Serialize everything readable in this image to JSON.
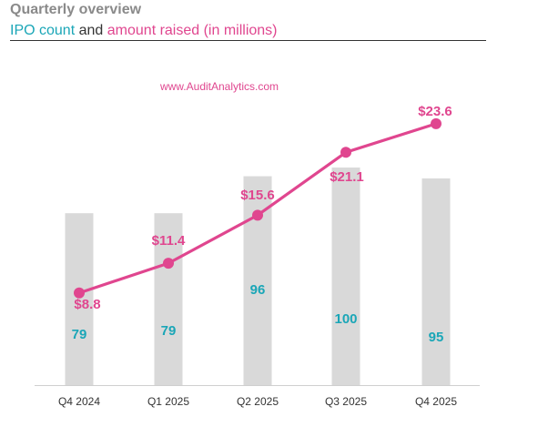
{
  "header": {
    "title": "Quarterly overview",
    "subtitle_part1": "IPO count",
    "subtitle_part2": "and",
    "subtitle_part3": "amount raised (in millions)"
  },
  "colors": {
    "count": "#1aa6b7",
    "amount": "#e0468f",
    "bar": "#d9d9d9",
    "title": "#8a8a8a"
  },
  "chart_data": {
    "type": "bar",
    "categories": [
      "Q4 2024",
      "Q1 2025",
      "Q2 2025",
      "Q3 2025",
      "Q4 2025"
    ],
    "series": [
      {
        "name": "IPO count",
        "type": "bar",
        "values": [
          79,
          79,
          96,
          100,
          95
        ],
        "labels": [
          "79",
          "79",
          "96",
          "100",
          "95"
        ]
      },
      {
        "name": "amount raised (in millions)",
        "type": "line",
        "values": [
          8.8,
          11.4,
          15.6,
          21.1,
          23.6
        ],
        "labels": [
          "$8.8",
          "$11.4",
          "$15.6",
          "$21.1",
          "$23.6"
        ]
      }
    ],
    "annotation": "www.AuditAnalytics.com",
    "grid": false,
    "legend": "none"
  }
}
